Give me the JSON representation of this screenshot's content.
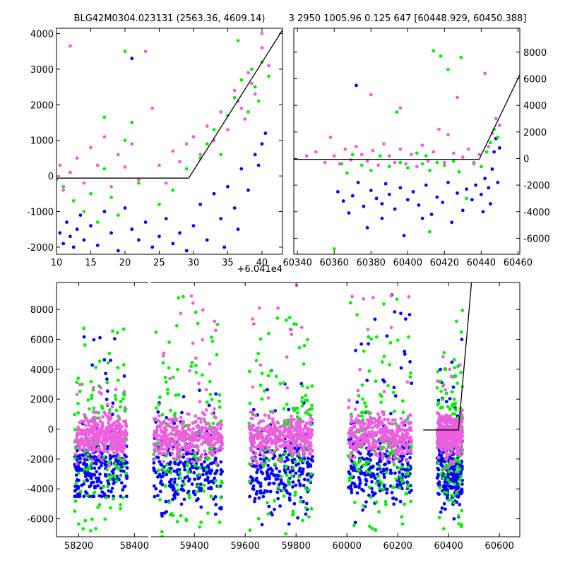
{
  "figure": {
    "title_left": "BLG42M0304.023131 (2563.36, 4609.14)",
    "title_right": "3 2950 1005.96 0.125 647 [60448.929, 60450.388]",
    "offset_label": "+6.041e4"
  },
  "colors": {
    "blue": "#0000ff",
    "green": "#00ee00",
    "pink": "#ee5fe0",
    "model": "#000000"
  },
  "chart_data": [
    {
      "type": "scatter",
      "panel": "top-left",
      "xlim": [
        10,
        43
      ],
      "ylim": [
        -2200,
        4150
      ],
      "xticks": [
        "10",
        "15",
        "20",
        "25",
        "30",
        "35",
        "40"
      ],
      "yticks": [
        "-2000",
        "-1000",
        "0",
        "1000",
        "2000",
        "3000",
        "4000"
      ],
      "model_line": {
        "x": [
          10,
          29.3,
          43
        ],
        "y": [
          -60,
          -60,
          4100
        ]
      },
      "series": [
        {
          "color": "blue",
          "points": [
            [
              10.5,
              -1600
            ],
            [
              11,
              -1900
            ],
            [
              11.5,
              -1300
            ],
            [
              12,
              -1700
            ],
            [
              12.5,
              -2000
            ],
            [
              13,
              -1500
            ],
            [
              13.5,
              -1100
            ],
            [
              14,
              -1800
            ],
            [
              15,
              -1400
            ],
            [
              16,
              -1950
            ],
            [
              17,
              -1000
            ],
            [
              18,
              -1600
            ],
            [
              19,
              -2100
            ],
            [
              20,
              -900
            ],
            [
              21,
              -1500
            ],
            [
              21,
              3300
            ],
            [
              22,
              -1800
            ],
            [
              23,
              -1300
            ],
            [
              24,
              -2000
            ],
            [
              25,
              -1700
            ],
            [
              26,
              -1200
            ],
            [
              27,
              -1900
            ],
            [
              28,
              -1600
            ],
            [
              29,
              -2100
            ],
            [
              30,
              -1400
            ],
            [
              31,
              -800
            ],
            [
              32,
              -1800
            ],
            [
              33,
              -500
            ],
            [
              34,
              -1200
            ],
            [
              35,
              -300
            ],
            [
              36,
              -900
            ],
            [
              37,
              200
            ],
            [
              38,
              -400
            ],
            [
              39,
              600
            ],
            [
              40,
              900
            ],
            [
              40.5,
              1200
            ],
            [
              39.5,
              300
            ],
            [
              36.5,
              -1500
            ],
            [
              34.5,
              -2000
            ]
          ]
        },
        {
          "color": "green",
          "points": [
            [
              11,
              -300
            ],
            [
              12.5,
              -700
            ],
            [
              14,
              -1000
            ],
            [
              15,
              -500
            ],
            [
              16,
              -1300
            ],
            [
              17,
              200
            ],
            [
              17,
              1650
            ],
            [
              18,
              -600
            ],
            [
              19,
              -1100
            ],
            [
              20,
              1000
            ],
            [
              20,
              3500
            ],
            [
              21,
              1500
            ],
            [
              22,
              -200
            ],
            [
              25,
              -800
            ],
            [
              27,
              -400
            ],
            [
              29,
              200
            ],
            [
              31,
              500
            ],
            [
              32,
              900
            ],
            [
              33,
              1300
            ],
            [
              34,
              600
            ],
            [
              35,
              1700
            ],
            [
              36,
              2200
            ],
            [
              37,
              2700
            ],
            [
              38,
              1800
            ],
            [
              38.5,
              3000
            ],
            [
              39,
              2500
            ],
            [
              40,
              3200
            ],
            [
              41,
              2800
            ],
            [
              36.5,
              3800
            ],
            [
              39.5,
              2100
            ]
          ]
        },
        {
          "color": "pink",
          "points": [
            [
              10,
              -100
            ],
            [
              10.5,
              300
            ],
            [
              11,
              -400
            ],
            [
              12,
              3650
            ],
            [
              12,
              100
            ],
            [
              13,
              500
            ],
            [
              14,
              -200
            ],
            [
              15,
              800
            ],
            [
              16,
              300
            ],
            [
              17,
              1100
            ],
            [
              18,
              -300
            ],
            [
              19,
              600
            ],
            [
              20,
              250
            ],
            [
              21,
              900
            ],
            [
              22,
              -100
            ],
            [
              23,
              3500
            ],
            [
              24,
              1900
            ],
            [
              25,
              300
            ],
            [
              26,
              -200
            ],
            [
              27,
              700
            ],
            [
              28,
              400
            ],
            [
              29,
              900
            ],
            [
              30,
              1100
            ],
            [
              31,
              600
            ],
            [
              32,
              1400
            ],
            [
              33,
              1000
            ],
            [
              34,
              1800
            ],
            [
              35,
              1300
            ],
            [
              36,
              2400
            ],
            [
              37,
              1900
            ],
            [
              38,
              2900
            ],
            [
              39,
              2300
            ],
            [
              40,
              3600
            ],
            [
              40,
              4000
            ],
            [
              41,
              3100
            ],
            [
              36.5,
              2100
            ],
            [
              37.5,
              1600
            ],
            [
              38.5,
              2600
            ]
          ]
        }
      ]
    },
    {
      "type": "scatter",
      "panel": "top-right",
      "xlim": [
        60338,
        60461
      ],
      "ylim": [
        -7200,
        9800
      ],
      "xticks": [
        "60340",
        "60360",
        "60380",
        "60400",
        "60420",
        "60440",
        "60460"
      ],
      "yticks": [
        "-6000",
        "-4000",
        "-2000",
        "0",
        "2000",
        "4000",
        "6000",
        "8000"
      ],
      "model_line": {
        "x": [
          60338,
          60438.9,
          60461
        ],
        "y": [
          -60,
          -60,
          6300
        ]
      },
      "series": [
        {
          "color": "blue",
          "points": [
            [
              60362,
              -2500
            ],
            [
              60365,
              -3200
            ],
            [
              60368,
              -4100
            ],
            [
              60370,
              -2800
            ],
            [
              60372,
              5500
            ],
            [
              60373,
              -1800
            ],
            [
              60376,
              -3600
            ],
            [
              60378,
              -5200
            ],
            [
              60380,
              -2400
            ],
            [
              60383,
              -3000
            ],
            [
              60386,
              -4500
            ],
            [
              60388,
              -1900
            ],
            [
              60390,
              -2700
            ],
            [
              60393,
              -3800
            ],
            [
              60396,
              -2200
            ],
            [
              60398,
              -5800
            ],
            [
              60400,
              -3100
            ],
            [
              60403,
              -2500
            ],
            [
              60406,
              -3500
            ],
            [
              60410,
              -2000
            ],
            [
              60413,
              -4200
            ],
            [
              60416,
              -2900
            ],
            [
              60419,
              -3300
            ],
            [
              60422,
              -1800
            ],
            [
              60424,
              -4800
            ],
            [
              60427,
              -2600
            ],
            [
              60430,
              -3900
            ],
            [
              60432,
              -2300
            ],
            [
              60435,
              -3100
            ],
            [
              60437,
              -2000
            ],
            [
              60440,
              -2700
            ],
            [
              60442,
              -1500
            ],
            [
              60444,
              -2200
            ],
            [
              60446,
              -800
            ],
            [
              60447,
              500
            ],
            [
              60448,
              1500
            ],
            [
              60449,
              -1800
            ],
            [
              60450,
              800
            ],
            [
              60445,
              -3400
            ],
            [
              60441,
              -4000
            ],
            [
              60408,
              -4500
            ],
            [
              60386,
              -3400
            ]
          ]
        },
        {
          "color": "green",
          "points": [
            [
              60364,
              -400
            ],
            [
              60367,
              -1100
            ],
            [
              60370,
              300
            ],
            [
              60375,
              -500
            ],
            [
              60380,
              -900
            ],
            [
              60385,
              200
            ],
            [
              60390,
              -600
            ],
            [
              60394,
              3500
            ],
            [
              60396,
              -300
            ],
            [
              60400,
              -700
            ],
            [
              60405,
              400
            ],
            [
              60408,
              -400
            ],
            [
              60410,
              200
            ],
            [
              60412,
              -900
            ],
            [
              60414,
              8100
            ],
            [
              60416,
              -300
            ],
            [
              60418,
              7700
            ],
            [
              60420,
              -500
            ],
            [
              60422,
              6700
            ],
            [
              60425,
              -200
            ],
            [
              60428,
              -1000
            ],
            [
              60429,
              7600
            ],
            [
              60432,
              -3000
            ],
            [
              60436,
              -300
            ],
            [
              60440,
              -600
            ],
            [
              60443,
              500
            ],
            [
              60445,
              1200
            ],
            [
              60447,
              2200
            ],
            [
              60449,
              1600
            ],
            [
              60412,
              -5500
            ],
            [
              60360,
              -6800
            ]
          ]
        },
        {
          "color": "pink",
          "points": [
            [
              60345,
              200
            ],
            [
              60350,
              500
            ],
            [
              60355,
              -300
            ],
            [
              60358,
              1600
            ],
            [
              60360,
              200
            ],
            [
              60363,
              -400
            ],
            [
              60366,
              700
            ],
            [
              60369,
              -100
            ],
            [
              60372,
              900
            ],
            [
              60375,
              300
            ],
            [
              60378,
              -200
            ],
            [
              60381,
              600
            ],
            [
              60384,
              -500
            ],
            [
              60387,
              1100
            ],
            [
              60390,
              200
            ],
            [
              60393,
              -300
            ],
            [
              60396,
              700
            ],
            [
              60399,
              -400
            ],
            [
              60402,
              300
            ],
            [
              60405,
              -600
            ],
            [
              60408,
              1000
            ],
            [
              60411,
              -200
            ],
            [
              60414,
              500
            ],
            [
              60417,
              2200
            ],
            [
              60420,
              -300
            ],
            [
              60422,
              1800
            ],
            [
              60425,
              400
            ],
            [
              60427,
              4600
            ],
            [
              60430,
              100
            ],
            [
              60433,
              700
            ],
            [
              60436,
              -400
            ],
            [
              60439,
              300
            ],
            [
              60442,
              6400
            ],
            [
              60444,
              900
            ],
            [
              60446,
              1900
            ],
            [
              60448,
              3000
            ],
            [
              60450,
              2500
            ],
            [
              60380,
              4800
            ],
            [
              60396,
              3800
            ]
          ]
        }
      ]
    },
    {
      "type": "scatter",
      "panel": "bottom",
      "ylim": [
        -7200,
        9800
      ],
      "yticks": [
        "-6000",
        "-4000",
        "-2000",
        "0",
        "2000",
        "4000",
        "6000",
        "8000"
      ],
      "segments": [
        {
          "xlim": [
            58120,
            58450
          ],
          "xticks": [
            "58200",
            "58400"
          ]
        },
        {
          "xlim": [
            59230,
            60680
          ],
          "xticks": [
            "59400",
            "59600",
            "59800",
            "60000",
            "60200",
            "60400",
            "60600"
          ]
        }
      ],
      "model_line": {
        "x": [
          60300,
          60438.9,
          60490
        ],
        "y": [
          -60,
          -60,
          9800
        ]
      },
      "clusters": [
        {
          "center": 58280,
          "halfwidth": 95,
          "core": [
            -1800,
            1500
          ],
          "blue": [
            -4500,
            6500
          ],
          "green": [
            -7000,
            7000
          ],
          "pink_extra": [
            -2500,
            3000
          ]
        },
        {
          "center": 59375,
          "halfwidth": 135,
          "core": [
            -1500,
            1000
          ],
          "blue": [
            -6000,
            3000
          ],
          "green": [
            -7200,
            9000
          ],
          "pink_extra": [
            -3000,
            9500
          ]
        },
        {
          "center": 59740,
          "halfwidth": 125,
          "core": [
            -1500,
            1200
          ],
          "blue": [
            -6500,
            4000
          ],
          "green": [
            -7000,
            7500
          ],
          "pink_extra": [
            -2500,
            9700
          ]
        },
        {
          "center": 60130,
          "halfwidth": 125,
          "core": [
            -1500,
            1200
          ],
          "blue": [
            -6800,
            9000
          ],
          "green": [
            -7200,
            9000
          ],
          "pink_extra": [
            -2500,
            9000
          ]
        },
        {
          "center": 60405,
          "halfwidth": 50,
          "core": [
            -1500,
            1000
          ],
          "blue": [
            -6000,
            6000
          ],
          "green": [
            -7000,
            8500
          ],
          "pink_extra": [
            -2500,
            5000
          ]
        }
      ]
    }
  ]
}
